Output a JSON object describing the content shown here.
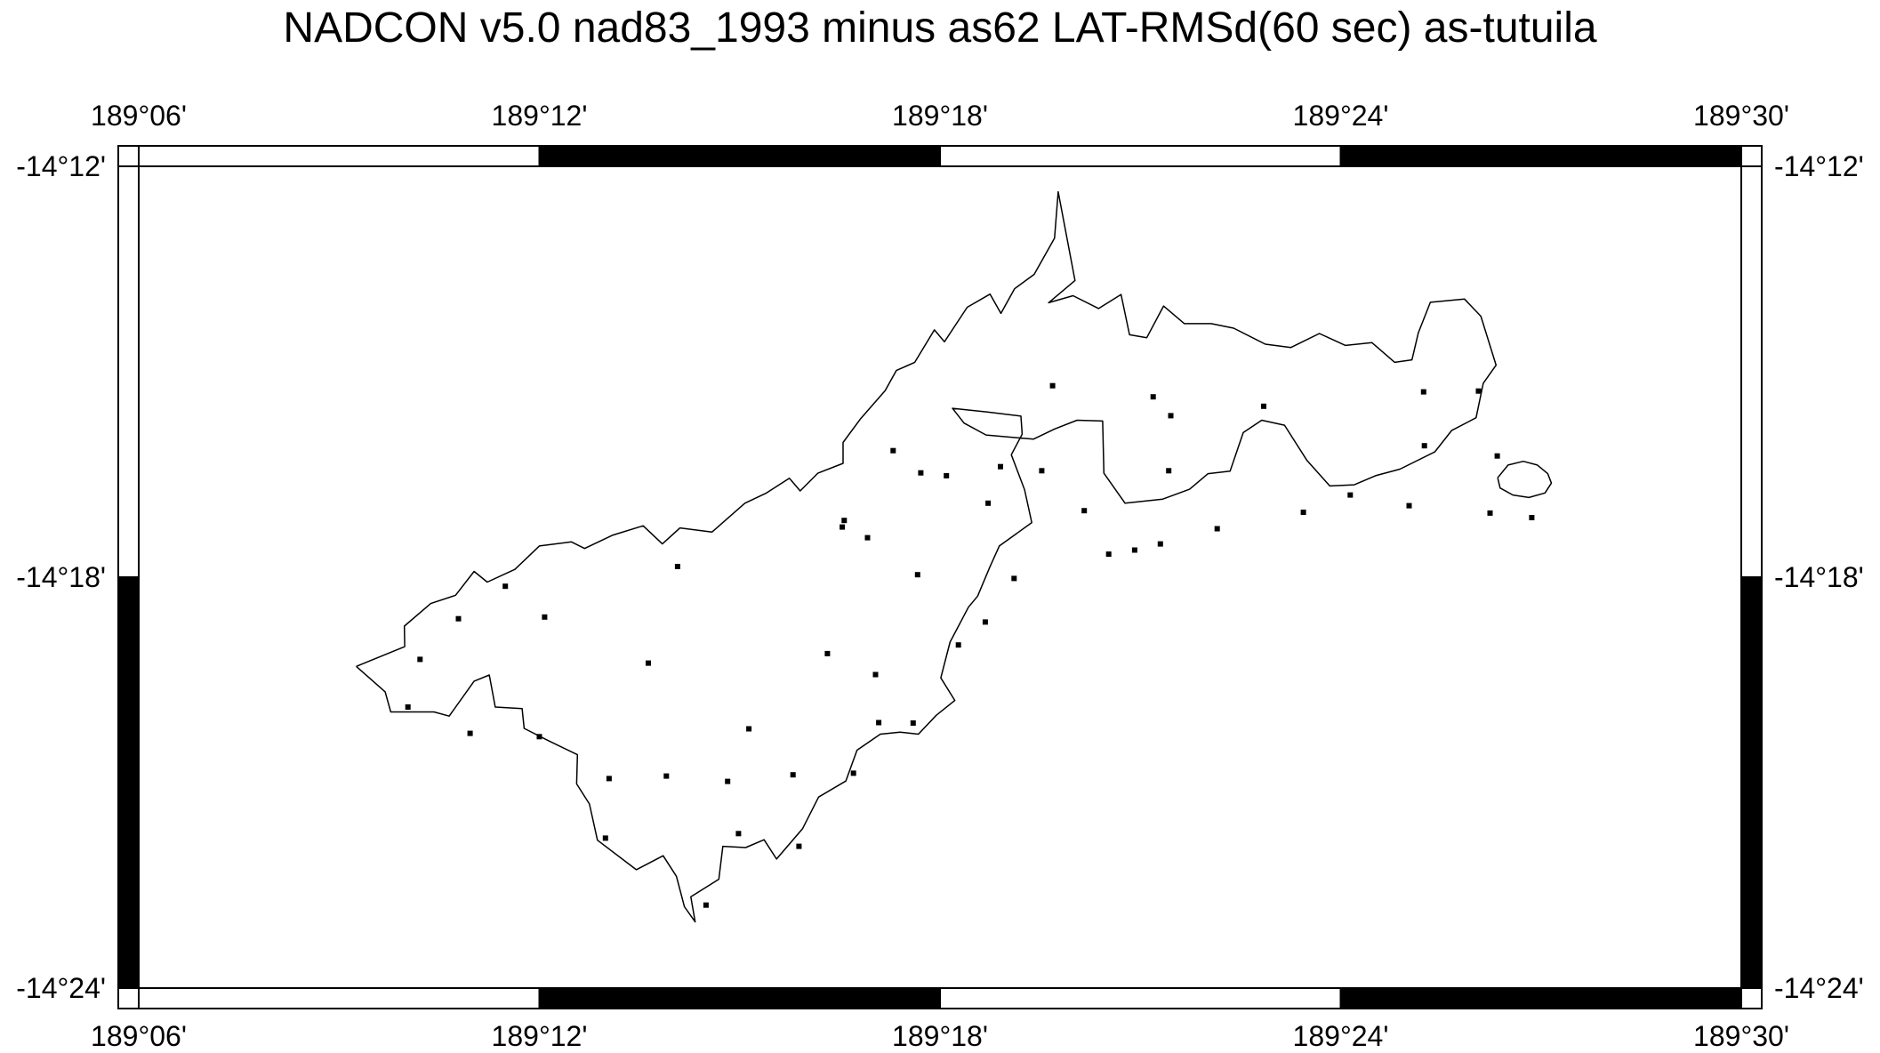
{
  "title": "NADCON v5.0 nad83_1993 minus as62 LAT-RMSd(60 sec) as-tutuila",
  "x_ticks": [
    {
      "label": "189°06'",
      "lon": 189.1
    },
    {
      "label": "189°12'",
      "lon": 189.2
    },
    {
      "label": "189°18'",
      "lon": 189.3
    },
    {
      "label": "189°24'",
      "lon": 189.4
    },
    {
      "label": "189°30'",
      "lon": 189.5
    }
  ],
  "y_ticks": [
    {
      "label": "-14°12'",
      "lat": -14.2
    },
    {
      "label": "-14°18'",
      "lat": -14.3
    },
    {
      "label": "-14°24'",
      "lat": -14.4
    }
  ],
  "extent": {
    "lon_min": 189.1,
    "lon_max": 189.5,
    "lat_min": -14.4,
    "lat_max": -14.2
  },
  "colors": {
    "frame": "#000000",
    "coastline": "#000000",
    "points": "#000000",
    "background": "#ffffff"
  },
  "coastline_main": [
    [
      189.1543,
      -14.3217
    ],
    [
      189.1664,
      -14.3169
    ],
    [
      189.1663,
      -14.3119
    ],
    [
      189.1729,
      -14.3064
    ],
    [
      189.1791,
      -14.3044
    ],
    [
      189.1837,
      -14.2986
    ],
    [
      189.187,
      -14.3012
    ],
    [
      189.1939,
      -14.2981
    ],
    [
      189.2,
      -14.2924
    ],
    [
      189.208,
      -14.2914
    ],
    [
      189.2113,
      -14.293
    ],
    [
      189.2182,
      -14.2898
    ],
    [
      189.2259,
      -14.2875
    ],
    [
      189.2307,
      -14.2919
    ],
    [
      189.2351,
      -14.288
    ],
    [
      189.2431,
      -14.289
    ],
    [
      189.2513,
      -14.282
    ],
    [
      189.2567,
      -14.2795
    ],
    [
      189.2624,
      -14.2759
    ],
    [
      189.2651,
      -14.279
    ],
    [
      189.2695,
      -14.2747
    ],
    [
      189.2758,
      -14.2723
    ],
    [
      189.2758,
      -14.2672
    ],
    [
      189.2802,
      -14.2614
    ],
    [
      189.2863,
      -14.2546
    ],
    [
      189.2891,
      -14.2497
    ],
    [
      189.2937,
      -14.2477
    ],
    [
      189.2986,
      -14.2398
    ],
    [
      189.3011,
      -14.2427
    ],
    [
      189.3068,
      -14.2343
    ],
    [
      189.3125,
      -14.2311
    ],
    [
      189.3152,
      -14.2358
    ],
    [
      189.3186,
      -14.2298
    ],
    [
      189.3235,
      -14.2263
    ],
    [
      189.3286,
      -14.2175
    ],
    [
      189.3295,
      -14.2062
    ],
    [
      189.3337,
      -14.2278
    ],
    [
      189.3271,
      -14.2332
    ],
    [
      189.3332,
      -14.2315
    ],
    [
      189.3396,
      -14.2346
    ],
    [
      189.3452,
      -14.2312
    ],
    [
      189.3473,
      -14.241
    ],
    [
      189.3516,
      -14.2417
    ],
    [
      189.3558,
      -14.234
    ],
    [
      189.361,
      -14.2383
    ],
    [
      189.3677,
      -14.2383
    ],
    [
      189.3733,
      -14.2394
    ],
    [
      189.3812,
      -14.2433
    ],
    [
      189.3876,
      -14.2441
    ],
    [
      189.3947,
      -14.2407
    ],
    [
      189.4012,
      -14.2436
    ],
    [
      189.4078,
      -14.2429
    ],
    [
      189.4135,
      -14.2477
    ],
    [
      189.4178,
      -14.2471
    ],
    [
      189.4194,
      -14.2405
    ],
    [
      189.4224,
      -14.2331
    ],
    [
      189.4309,
      -14.2323
    ],
    [
      189.435,
      -14.2365
    ],
    [
      189.4388,
      -14.2484
    ],
    [
      189.4356,
      -14.2528
    ],
    [
      189.4338,
      -14.2612
    ],
    [
      189.4277,
      -14.2643
    ],
    [
      189.4235,
      -14.2695
    ],
    [
      189.4148,
      -14.2737
    ],
    [
      189.4087,
      -14.2753
    ],
    [
      189.4034,
      -14.2775
    ],
    [
      189.3973,
      -14.2778
    ],
    [
      189.3916,
      -14.2716
    ],
    [
      189.386,
      -14.263
    ],
    [
      189.3803,
      -14.2618
    ],
    [
      189.3757,
      -14.2648
    ],
    [
      189.3724,
      -14.2742
    ],
    [
      189.3669,
      -14.2748
    ],
    [
      189.3623,
      -14.2786
    ],
    [
      189.3556,
      -14.281
    ],
    [
      189.3462,
      -14.282
    ],
    [
      189.3409,
      -14.2747
    ],
    [
      189.3406,
      -14.262
    ],
    [
      189.3342,
      -14.2618
    ],
    [
      189.3287,
      -14.2639
    ],
    [
      189.3233,
      -14.2664
    ],
    [
      189.3115,
      -14.2654
    ],
    [
      189.306,
      -14.2625
    ],
    [
      189.3031,
      -14.2589
    ],
    [
      189.3118,
      -14.2598
    ],
    [
      189.3202,
      -14.2608
    ],
    [
      189.3205,
      -14.2652
    ],
    [
      189.3178,
      -14.2702
    ],
    [
      189.3211,
      -14.2787
    ],
    [
      189.3229,
      -14.2867
    ],
    [
      189.3148,
      -14.2924
    ],
    [
      189.3124,
      -14.2976
    ],
    [
      189.3094,
      -14.3046
    ],
    [
      189.3071,
      -14.3073
    ],
    [
      189.3025,
      -14.3158
    ],
    [
      189.3002,
      -14.3245
    ],
    [
      189.3037,
      -14.33
    ],
    [
      189.2991,
      -14.3336
    ],
    [
      189.2946,
      -14.3382
    ],
    [
      189.29,
      -14.3377
    ],
    [
      189.2851,
      -14.3382
    ],
    [
      189.2793,
      -14.3421
    ],
    [
      189.2765,
      -14.3496
    ],
    [
      189.2697,
      -14.3535
    ],
    [
      189.2657,
      -14.3612
    ],
    [
      189.2592,
      -14.3686
    ],
    [
      189.2561,
      -14.3639
    ],
    [
      189.2515,
      -14.3658
    ],
    [
      189.2458,
      -14.3655
    ],
    [
      189.2448,
      -14.3735
    ],
    [
      189.2378,
      -14.3778
    ],
    [
      189.2389,
      -14.3839
    ],
    [
      189.2362,
      -14.3802
    ],
    [
      189.2342,
      -14.3728
    ],
    [
      189.2309,
      -14.3678
    ],
    [
      189.2242,
      -14.3712
    ],
    [
      189.2145,
      -14.364
    ],
    [
      189.2125,
      -14.3552
    ],
    [
      189.2093,
      -14.3503
    ],
    [
      189.2095,
      -14.3432
    ],
    [
      189.2023,
      -14.3398
    ],
    [
      189.1962,
      -14.3368
    ],
    [
      189.1957,
      -14.332
    ],
    [
      189.189,
      -14.3316
    ],
    [
      189.1875,
      -14.3238
    ],
    [
      189.1837,
      -14.3253
    ],
    [
      189.1775,
      -14.3338
    ],
    [
      189.1737,
      -14.3328
    ],
    [
      189.1629,
      -14.3328
    ],
    [
      189.1615,
      -14.3279
    ],
    [
      189.1543,
      -14.3217
    ]
  ],
  "coastline_islet": [
    [
      189.4392,
      -14.2758
    ],
    [
      189.4418,
      -14.2727
    ],
    [
      189.4456,
      -14.2718
    ],
    [
      189.4491,
      -14.2727
    ],
    [
      189.4517,
      -14.2748
    ],
    [
      189.4526,
      -14.2771
    ],
    [
      189.451,
      -14.2795
    ],
    [
      189.447,
      -14.2806
    ],
    [
      189.443,
      -14.28
    ],
    [
      189.4398,
      -14.2783
    ],
    [
      189.4392,
      -14.2758
    ]
  ],
  "points": [
    [
      189.3281,
      -14.2534
    ],
    [
      189.3532,
      -14.2561
    ],
    [
      189.3576,
      -14.2607
    ],
    [
      189.3808,
      -14.2584
    ],
    [
      189.4207,
      -14.2549
    ],
    [
      189.4344,
      -14.2547
    ],
    [
      189.2883,
      -14.2692
    ],
    [
      189.2952,
      -14.2746
    ],
    [
      189.3016,
      -14.2753
    ],
    [
      189.3151,
      -14.2731
    ],
    [
      189.3254,
      -14.2741
    ],
    [
      189.3571,
      -14.2741
    ],
    [
      189.4024,
      -14.28
    ],
    [
      189.3907,
      -14.2842
    ],
    [
      189.4209,
      -14.268
    ],
    [
      189.312,
      -14.282
    ],
    [
      189.336,
      -14.2838
    ],
    [
      189.4373,
      -14.2844
    ],
    [
      189.4477,
      -14.2855
    ],
    [
      189.4171,
      -14.2826
    ],
    [
      189.3692,
      -14.2882
    ],
    [
      189.355,
      -14.2919
    ],
    [
      189.3486,
      -14.2934
    ],
    [
      189.3421,
      -14.2944
    ],
    [
      189.4391,
      -14.2705
    ],
    [
      189.2761,
      -14.2862
    ],
    [
      189.2756,
      -14.2878
    ],
    [
      189.2819,
      -14.2904
    ],
    [
      189.2345,
      -14.2974
    ],
    [
      189.2944,
      -14.2994
    ],
    [
      189.3185,
      -14.3003
    ],
    [
      189.1915,
      -14.3022
    ],
    [
      189.2013,
      -14.3097
    ],
    [
      189.1798,
      -14.3101
    ],
    [
      189.3113,
      -14.3109
    ],
    [
      189.3046,
      -14.3165
    ],
    [
      189.1702,
      -14.32
    ],
    [
      189.2272,
      -14.3209
    ],
    [
      189.2719,
      -14.3186
    ],
    [
      189.2839,
      -14.3237
    ],
    [
      189.1672,
      -14.3316
    ],
    [
      189.1827,
      -14.338
    ],
    [
      189.2,
      -14.3388
    ],
    [
      189.2847,
      -14.3354
    ],
    [
      189.2933,
      -14.3355
    ],
    [
      189.2523,
      -14.3369
    ],
    [
      189.2174,
      -14.349
    ],
    [
      189.2317,
      -14.3484
    ],
    [
      189.247,
      -14.3497
    ],
    [
      189.2633,
      -14.3481
    ],
    [
      189.2784,
      -14.3477
    ],
    [
      189.2165,
      -14.3635
    ],
    [
      189.2497,
      -14.3624
    ],
    [
      189.2648,
      -14.3655
    ],
    [
      189.2416,
      -14.3798
    ]
  ]
}
